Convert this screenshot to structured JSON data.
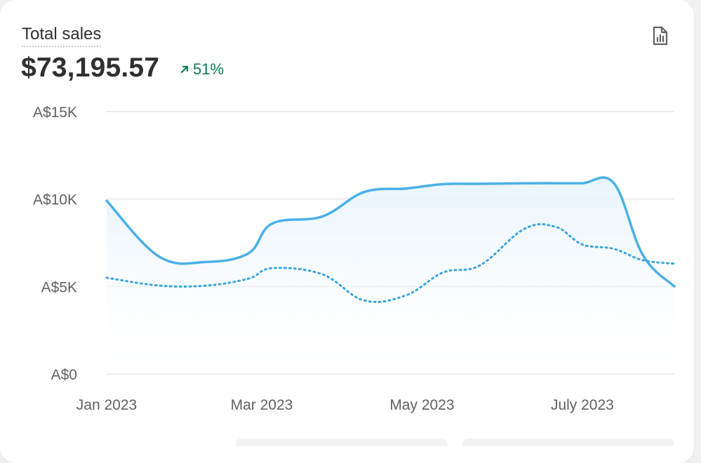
{
  "header": {
    "title": "Total sales",
    "value": "$73,195.57",
    "change": "51%",
    "change_direction": "up",
    "change_color": "#0e7b4f",
    "report_icon": "report-icon"
  },
  "colors": {
    "primary_line": "#4ab0e6",
    "comparison_line": "#3aa5dc",
    "grid": "#e6e6e6",
    "text": "#303030",
    "muted_text": "#616161"
  },
  "chart_data": {
    "type": "line",
    "x": [
      "2023-01-01",
      "2023-01-21",
      "2023-02-08",
      "2023-02-24",
      "2023-03-05",
      "2023-03-24",
      "2023-04-09",
      "2023-04-25",
      "2023-05-09",
      "2023-05-23",
      "2023-06-09",
      "2023-06-21",
      "2023-07-01",
      "2023-07-13",
      "2023-07-24",
      "2023-08-05"
    ],
    "series": [
      {
        "style": "solid",
        "values": [
          9900,
          6700,
          6400,
          6900,
          8600,
          9000,
          10400,
          10600,
          10850,
          10870,
          10900,
          10900,
          10900,
          10900,
          6800,
          5000
        ]
      },
      {
        "style": "dotted",
        "values": [
          5500,
          5050,
          5050,
          5450,
          6050,
          5700,
          4200,
          4500,
          5800,
          6200,
          8300,
          8400,
          7400,
          7150,
          6500,
          6300
        ]
      }
    ],
    "area_under": "solid",
    "xticks": [
      {
        "label": "Jan 2023",
        "date": "2023-01-01"
      },
      {
        "label": "Mar 2023",
        "date": "2023-03-01"
      },
      {
        "label": "May 2023",
        "date": "2023-05-01"
      },
      {
        "label": "July 2023",
        "date": "2023-07-01"
      }
    ],
    "yticks": [
      {
        "label": "A$15K",
        "value": 15000
      },
      {
        "label": "A$10K",
        "value": 10000
      },
      {
        "label": "A$5K",
        "value": 5000
      },
      {
        "label": "A$0",
        "value": 0
      }
    ],
    "ylim": [
      0,
      15000
    ],
    "xlim": [
      "2023-01-01",
      "2023-08-05"
    ],
    "grid": true,
    "xlabel": "",
    "ylabel": "",
    "legend": "none"
  }
}
